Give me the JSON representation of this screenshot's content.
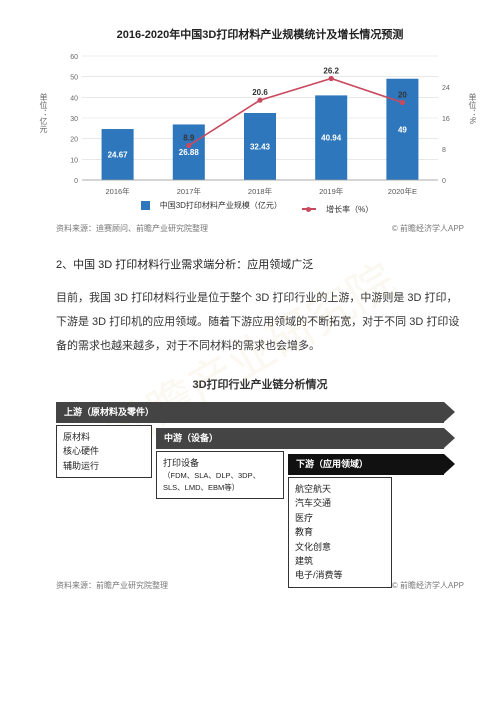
{
  "watermark": "前瞻产业研究院",
  "chart": {
    "title": "2016-2020年中国3D打印材料产业规模统计及增长情况预测",
    "type": "bar+line",
    "categories": [
      "2016年",
      "2017年",
      "2018年",
      "2019年",
      "2020年E"
    ],
    "bar_values": [
      24.67,
      26.88,
      32.43,
      40.94,
      49
    ],
    "line_values": [
      null,
      8.9,
      20.6,
      26.2,
      20
    ],
    "bar_color": "#2f77bc",
    "line_color": "#c94a5e",
    "y_left_label": "单位：亿元",
    "y_right_label": "单位：%",
    "y_left_max": 60,
    "y_left_ticks": [
      0,
      10,
      20,
      30,
      40,
      50,
      60
    ],
    "y_right_max": 32,
    "y_right_ticks": [
      0,
      8,
      16,
      24
    ],
    "grid_color": "#d9d9d9",
    "background_color": "#ffffff",
    "bar_width": 0.45,
    "legend": {
      "bar": "中国3D打印材料产业规模（亿元）",
      "line": "增长率（%）"
    }
  },
  "source": {
    "left": "资料来源：迪赛顾问、前瞻产业研究院整理",
    "right": "© 前瞻经济学人APP"
  },
  "section_heading": "2、中国 3D 打印材料行业需求端分析：应用领域广泛",
  "body": "目前，我国 3D 打印材料行业是位于整个 3D 打印行业的上游，中游则是 3D 打印，下游是 3D 打印机的应用领域。随着下游应用领域的不断拓宽，对于不同 3D 打印设备的需求也越来越多，对于不同材料的需求也会增多。",
  "chain": {
    "title": "3D打印行业产业链分析情况",
    "upstream": {
      "label": "上游（原材料及零件）",
      "items": [
        "原材料",
        "核心硬件",
        "辅助运行"
      ]
    },
    "midstream": {
      "label": "中游（设备）",
      "items": [
        "打印设备",
        "（FDM、SLA、DLP、3DP、SLS、LMD、EBM等）"
      ]
    },
    "downstream": {
      "label": "下游（应用领域）",
      "items": [
        "航空航天",
        "汽车交通",
        "医疗",
        "教育",
        "文化创意",
        "建筑",
        "电子/消费等"
      ]
    }
  },
  "source2": {
    "left": "资料来源：前瞻产业研究院整理",
    "right": "© 前瞻经济学人APP"
  }
}
